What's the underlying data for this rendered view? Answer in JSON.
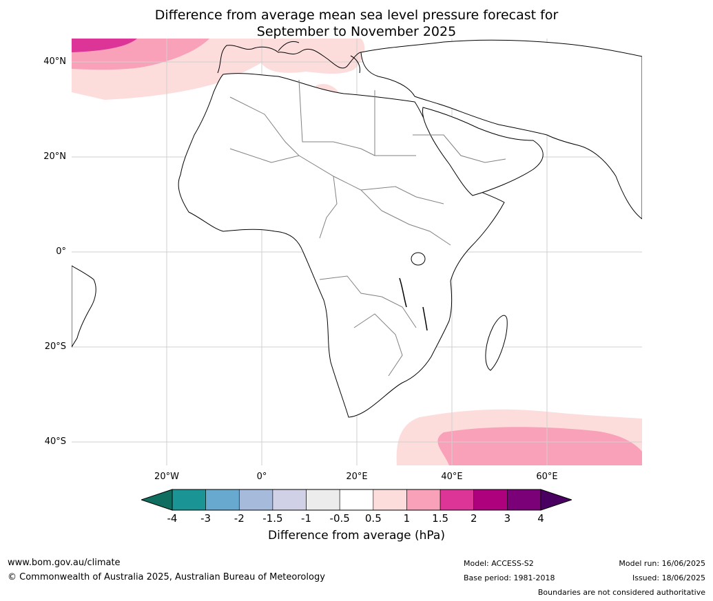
{
  "title": {
    "line1": "Difference from average mean sea level pressure forecast for",
    "line2": "September to November 2025"
  },
  "map": {
    "projection": "equirectangular",
    "lon_range": [
      -40,
      80
    ],
    "lat_range": [
      -45,
      45
    ],
    "lat_labels": [
      "40°N",
      "20°N",
      "0°",
      "20°S",
      "40°S"
    ],
    "lon_labels": [
      "20°W",
      "0°",
      "20°E",
      "40°E",
      "60°E"
    ],
    "colors": {
      "land_outline": "#000000",
      "borders": "#808080",
      "gridlines": "#d0d0d0"
    }
  },
  "colorbar": {
    "ticks": [
      "-4",
      "-3",
      "-2",
      "-1.5",
      "-1",
      "-0.5",
      "0.5",
      "1",
      "1.5",
      "2",
      "3",
      "4"
    ],
    "colors": [
      "#1a9494",
      "#67a9cf",
      "#a6bbdb",
      "#d0d1e6",
      "#ececec",
      "#ffffff",
      "#fddcdc",
      "#f8a1b8",
      "#dd3497",
      "#ae017e",
      "#7a0177"
    ],
    "under_color": "#0f6e5f",
    "over_color": "#4a0060",
    "label": "Difference from average (hPa)"
  },
  "footer": {
    "website": "www.bom.gov.au/climate",
    "copyright": "© Commonwealth of Australia 2025, Australian Bureau of Meteorology",
    "model": "Model: ACCESS-S2",
    "base_period": "Base period: 1981-2018",
    "model_run": "Model run: 16/06/2025",
    "issued": "Issued: 18/06/2025",
    "disclaimer": "Boundaries are not considered authoritative"
  }
}
